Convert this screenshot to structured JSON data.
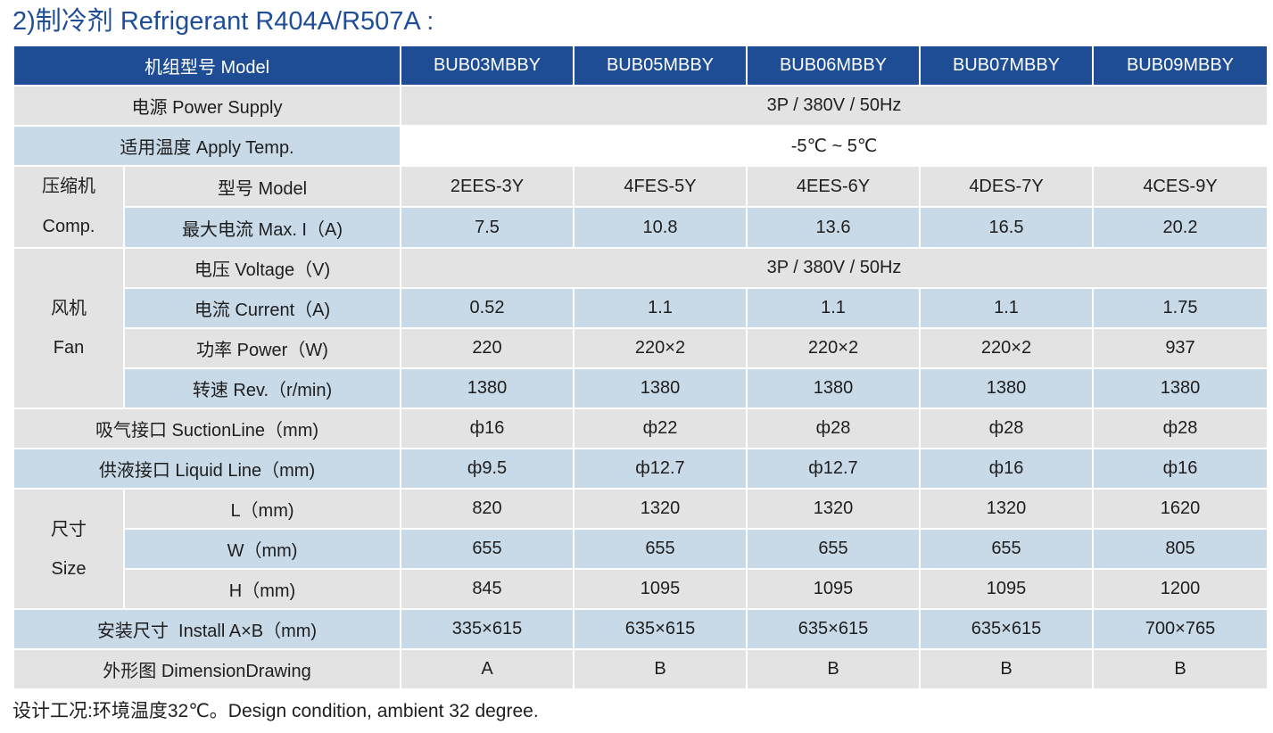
{
  "title": "2)制冷剂 Refrigerant R404A/R507A :",
  "header": {
    "model_label": "机组型号 Model",
    "models": [
      "BUB03MBBY",
      "BUB05MBBY",
      "BUB06MBBY",
      "BUB07MBBY",
      "BUB09MBBY"
    ]
  },
  "rows": {
    "power_supply": {
      "label": "电源 Power Supply",
      "value": "3P / 380V / 50Hz"
    },
    "apply_temp": {
      "label": "适用温度 Apply Temp.",
      "value": "-5℃ ~ 5℃"
    },
    "comp": {
      "group_zh": "压缩机",
      "group_en": "Comp.",
      "model": {
        "label": "型号 Model",
        "values": [
          "2EES-3Y",
          "4FES-5Y",
          "4EES-6Y",
          "4DES-7Y",
          "4CES-9Y"
        ]
      },
      "max_current": {
        "label": "最大电流 Max. I（A)",
        "values": [
          "7.5",
          "10.8",
          "13.6",
          "16.5",
          "20.2"
        ]
      }
    },
    "fan": {
      "group_zh": "风机",
      "group_en": "Fan",
      "voltage": {
        "label": "电压 Voltage（V)",
        "value": "3P / 380V / 50Hz"
      },
      "current": {
        "label": "电流 Current（A)",
        "values": [
          "0.52",
          "1.1",
          "1.1",
          "1.1",
          "1.75"
        ]
      },
      "power": {
        "label": "功率 Power（W)",
        "values": [
          "220",
          "220×2",
          "220×2",
          "220×2",
          "937"
        ]
      },
      "rev": {
        "label": "转速 Rev.（r/min)",
        "values": [
          "1380",
          "1380",
          "1380",
          "1380",
          "1380"
        ]
      }
    },
    "suction": {
      "label": "吸气接口 SuctionLine（mm)",
      "values": [
        "ф16",
        "ф22",
        "ф28",
        "ф28",
        "ф28"
      ]
    },
    "liquid": {
      "label": "供液接口 Liquid Line（mm)",
      "values": [
        "ф9.5",
        "ф12.7",
        "ф12.7",
        "ф16",
        "ф16"
      ]
    },
    "size": {
      "group_zh": "尺寸",
      "group_en": "Size",
      "L": {
        "label": "L（mm)",
        "values": [
          "820",
          "1320",
          "1320",
          "1320",
          "1620"
        ]
      },
      "W": {
        "label": "W（mm)",
        "values": [
          "655",
          "655",
          "655",
          "655",
          "805"
        ]
      },
      "H": {
        "label": "H（mm)",
        "values": [
          "845",
          "1095",
          "1095",
          "1095",
          "1200"
        ]
      }
    },
    "install": {
      "label": "安装尺寸  Install A×B（mm)",
      "values": [
        "335×615",
        "635×615",
        "635×615",
        "635×615",
        "700×765"
      ]
    },
    "drawing": {
      "label": "外形图 DimensionDrawing",
      "values": [
        "A",
        "B",
        "B",
        "B",
        "B"
      ]
    }
  },
  "footnote": "设计工况:环境温度32℃。Design condition, ambient 32 degree."
}
